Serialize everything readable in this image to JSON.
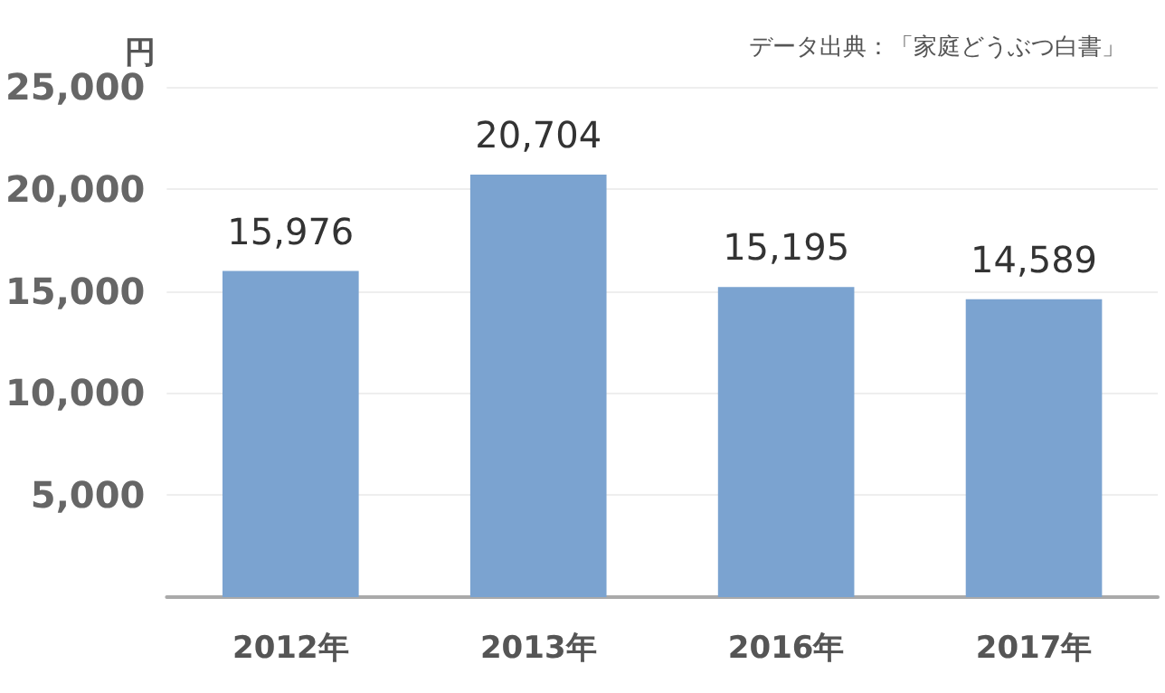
{
  "chart_data": {
    "type": "bar",
    "ylabel": "円",
    "annotations": [
      "データ出典：「家庭どうぶつ白書」"
    ],
    "categories": [
      "2012年",
      "2013年",
      "2016年",
      "2017年"
    ],
    "values": [
      15976,
      20704,
      15195,
      14589
    ],
    "color": "#7ba3d0",
    "value_labels": [
      "15,976",
      "20,704",
      "15,195",
      "14,589"
    ],
    "ylim": [
      0,
      25000
    ],
    "yticks": [
      {
        "value": 0,
        "label": null
      },
      {
        "value": 5000,
        "label": "5,000"
      },
      {
        "value": 10000,
        "label": "10,000"
      },
      {
        "value": 15000,
        "label": "15,000"
      },
      {
        "value": 20000,
        "label": "20,000"
      },
      {
        "value": 25000,
        "label": "25,000"
      }
    ],
    "grid": "y"
  }
}
